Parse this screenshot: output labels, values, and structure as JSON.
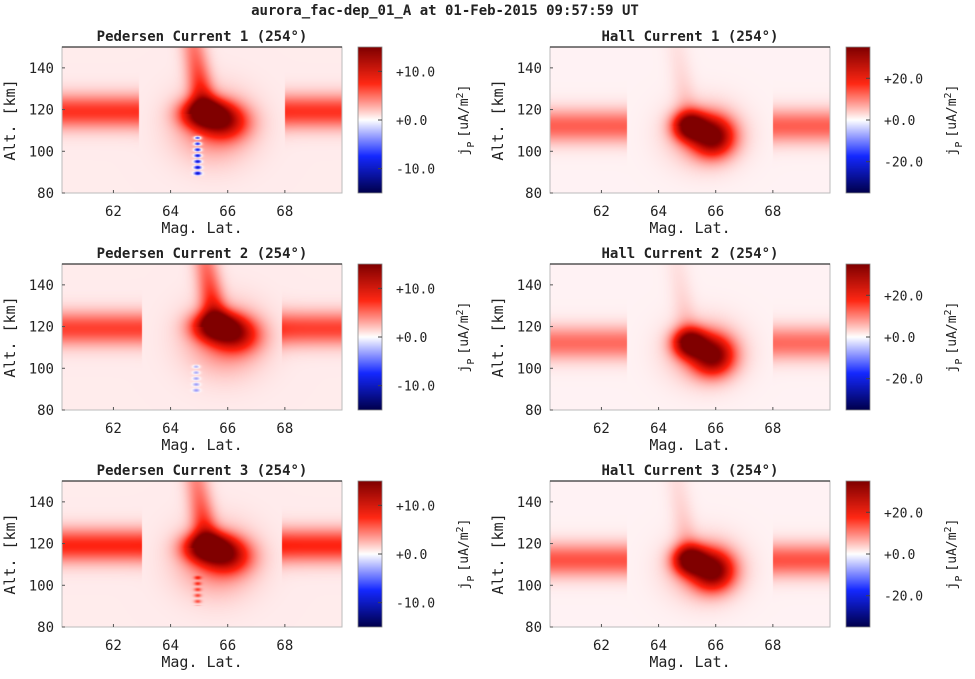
{
  "figure": {
    "title": "aurora_fac-dep_01_A at 01-Feb-2015 09:57:59 UT"
  },
  "chart_data": [
    {
      "type": "heatmap",
      "title": "Pedersen Current 1 (254°)",
      "xlabel": "Mag. Lat.",
      "ylabel": "Alt. [km]",
      "xlim": [
        60.2,
        70.0
      ],
      "ylim": [
        80,
        150
      ],
      "xticks": [
        62,
        64,
        66,
        68
      ],
      "yticks": [
        80,
        100,
        120,
        140
      ],
      "colorbar": {
        "label": "j_P [uA/m^2]",
        "range": [
          -15,
          15
        ],
        "ticks": [
          -10,
          0,
          10
        ],
        "tick_labels": [
          "-10.0",
          "+0.0",
          "+10.0"
        ],
        "colormap": "seismic"
      },
      "features": {
        "band_altitude": 119,
        "band_value": 6.5,
        "band_segments": [
          [
            60.2,
            62.9
          ],
          [
            68.0,
            70.0
          ]
        ],
        "core_lat": 65.2,
        "core_alt": 118,
        "core_value": 15.5,
        "plume_top_lat": 65.0,
        "plume_value": 9,
        "negative_streak_lat": 64.95,
        "negative_streak_alt": [
          88,
          108
        ],
        "negative_value": -11
      }
    },
    {
      "type": "heatmap",
      "title": "Hall Current 1 (254°)",
      "xlabel": "Mag. Lat.",
      "ylabel": "Alt. [km]",
      "xlim": [
        60.2,
        70.0
      ],
      "ylim": [
        80,
        150
      ],
      "xticks": [
        62,
        64,
        66,
        68
      ],
      "yticks": [
        80,
        100,
        120,
        140
      ],
      "colorbar": {
        "label": "j_P [uA/m^2]",
        "range": [
          -35,
          35
        ],
        "ticks": [
          -20,
          0,
          20
        ],
        "tick_labels": [
          "-20.0",
          "+0.0",
          "+20.0"
        ],
        "colormap": "seismic"
      },
      "features": {
        "band_altitude": 112,
        "band_value": 12,
        "band_segments": [
          [
            60.2,
            62.9
          ],
          [
            68.0,
            70.0
          ]
        ],
        "core_lat": 65.1,
        "core_alt": 112,
        "core_value": 36,
        "lobe_lat": 65.9,
        "lobe_alt": 107,
        "lobe_value": 32,
        "plume_value": 4
      }
    },
    {
      "type": "heatmap",
      "title": "Pedersen Current 2 (254°)",
      "xlabel": "Mag. Lat.",
      "ylabel": "Alt. [km]",
      "xlim": [
        60.2,
        70.0
      ],
      "ylim": [
        80,
        150
      ],
      "xticks": [
        62,
        64,
        66,
        68
      ],
      "yticks": [
        80,
        100,
        120,
        140
      ],
      "colorbar": {
        "label": "j_P [uA/m^2]",
        "range": [
          -15,
          15
        ],
        "ticks": [
          -10,
          0,
          10
        ],
        "tick_labels": [
          "-10.0",
          "+0.0",
          "+10.0"
        ],
        "colormap": "seismic"
      },
      "features": {
        "band_altitude": 119,
        "band_value": 6,
        "band_segments": [
          [
            60.2,
            63.0
          ],
          [
            67.9,
            70.0
          ]
        ],
        "core_lat": 65.6,
        "core_alt": 120,
        "core_value": 15,
        "plume_top_lat": 65.0,
        "plume_value": 9,
        "negative_streak_lat": 64.9,
        "negative_streak_alt": [
          88,
          102
        ],
        "negative_value": -4
      }
    },
    {
      "type": "heatmap",
      "title": "Hall Current 2 (254°)",
      "xlabel": "Mag. Lat.",
      "ylabel": "Alt. [km]",
      "xlim": [
        60.2,
        70.0
      ],
      "ylim": [
        80,
        150
      ],
      "xticks": [
        62,
        64,
        66,
        68
      ],
      "yticks": [
        80,
        100,
        120,
        140
      ],
      "colorbar": {
        "label": "j_P [uA/m^2]",
        "range": [
          -35,
          35
        ],
        "ticks": [
          -20,
          0,
          20
        ],
        "tick_labels": [
          "-20.0",
          "+0.0",
          "+20.0"
        ],
        "colormap": "seismic"
      },
      "features": {
        "band_altitude": 112,
        "band_value": 11,
        "band_segments": [
          [
            60.2,
            62.9
          ],
          [
            68.0,
            70.0
          ]
        ],
        "core_lat": 65.1,
        "core_alt": 112,
        "core_value": 36,
        "lobe_lat": 65.9,
        "lobe_alt": 106,
        "lobe_value": 31,
        "plume_value": 4
      }
    },
    {
      "type": "heatmap",
      "title": "Pedersen Current 3 (254°)",
      "xlabel": "Mag. Lat.",
      "ylabel": "Alt. [km]",
      "xlim": [
        60.2,
        70.0
      ],
      "ylim": [
        80,
        150
      ],
      "xticks": [
        62,
        64,
        66,
        68
      ],
      "yticks": [
        80,
        100,
        120,
        140
      ],
      "colorbar": {
        "label": "j_P [uA/m^2]",
        "range": [
          -15,
          15
        ],
        "ticks": [
          -10,
          0,
          10
        ],
        "tick_labels": [
          "-10.0",
          "+0.0",
          "+10.0"
        ],
        "colormap": "seismic"
      },
      "features": {
        "band_altitude": 119,
        "band_value": 7,
        "band_segments": [
          [
            60.2,
            63.0
          ],
          [
            67.9,
            70.0
          ]
        ],
        "core_lat": 65.3,
        "core_alt": 118,
        "core_value": 16,
        "plume_top_lat": 65.0,
        "plume_value": 8,
        "negative_streak_lat": 64.95,
        "negative_streak_alt": [
          90,
          105
        ],
        "negative_value": 5
      }
    },
    {
      "type": "heatmap",
      "title": "Hall Current 3 (254°)",
      "xlabel": "Mag. Lat.",
      "ylabel": "Alt. [km]",
      "xlim": [
        60.2,
        70.0
      ],
      "ylim": [
        80,
        150
      ],
      "xticks": [
        62,
        64,
        66,
        68
      ],
      "yticks": [
        80,
        100,
        120,
        140
      ],
      "colorbar": {
        "label": "j_P [uA/m^2]",
        "range": [
          -35,
          35
        ],
        "ticks": [
          -20,
          0,
          20
        ],
        "tick_labels": [
          "-20.0",
          "+0.0",
          "+20.0"
        ],
        "colormap": "seismic"
      },
      "features": {
        "band_altitude": 112,
        "band_value": 13,
        "band_segments": [
          [
            60.2,
            62.9
          ],
          [
            68.0,
            70.0
          ]
        ],
        "core_lat": 65.1,
        "core_alt": 112,
        "core_value": 36,
        "lobe_lat": 65.9,
        "lobe_alt": 107,
        "lobe_value": 32,
        "plume_value": 5
      }
    }
  ]
}
